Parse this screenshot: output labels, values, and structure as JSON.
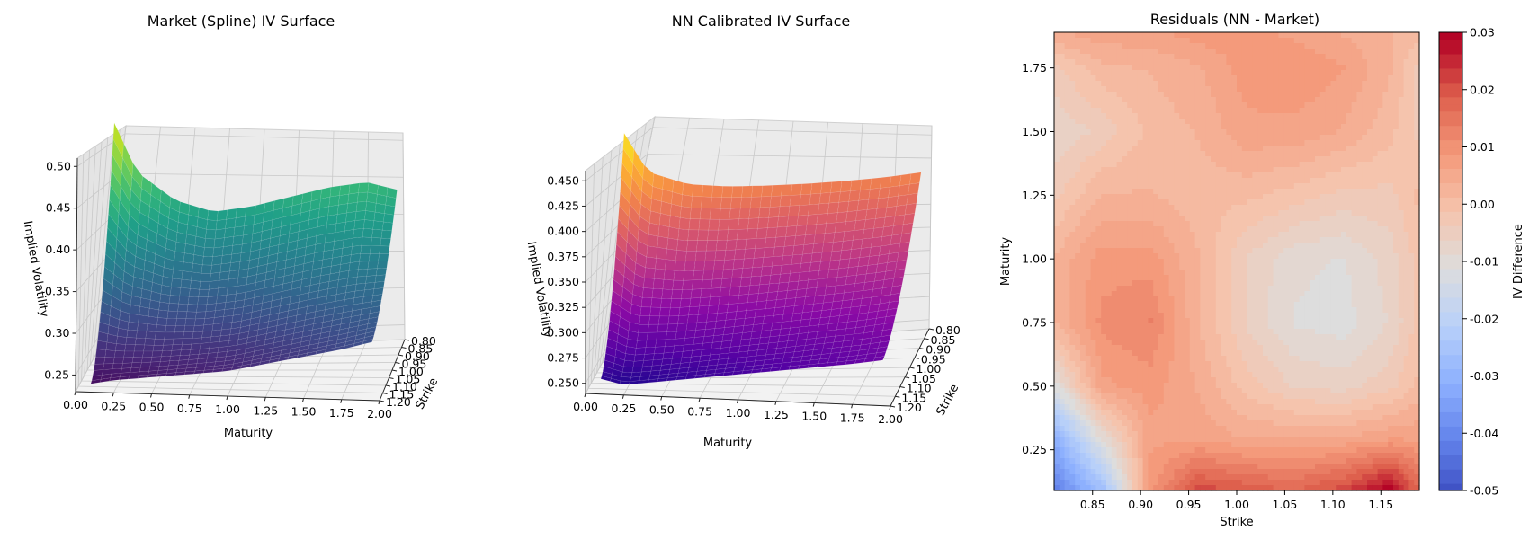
{
  "chart_data": [
    {
      "type": "surface",
      "title": "Market (Spline) IV Surface",
      "xlabel": "Maturity",
      "ylabel": "Strike",
      "zlabel": "Implied Volatility",
      "colormap": "viridis",
      "x_ticks": [
        "0.00",
        "0.25",
        "0.50",
        "0.75",
        "1.00",
        "1.25",
        "1.50",
        "1.75",
        "2.00"
      ],
      "y_ticks": [
        "0.80",
        "0.85",
        "0.90",
        "0.95",
        "1.00",
        "1.05",
        "1.10",
        "1.15",
        "1.20"
      ],
      "z_ticks": [
        "0.25",
        "0.30",
        "0.35",
        "0.40",
        "0.45",
        "0.50"
      ],
      "xlim": [
        0,
        2
      ],
      "ylim": [
        0.8,
        1.2
      ],
      "zlim": [
        0.23,
        0.51
      ],
      "maturity_front_edge": [
        0.05,
        0.1,
        0.25,
        0.5,
        0.75,
        1.0,
        1.25,
        1.5,
        1.75,
        1.95
      ],
      "iv_front_edge": [
        0.25,
        0.24,
        0.245,
        0.25,
        0.255,
        0.26,
        0.27,
        0.28,
        0.29,
        0.3
      ],
      "maturity_back_edge": [
        0.1,
        0.25,
        0.5,
        0.75,
        1.0,
        1.25,
        1.5,
        1.75,
        1.95
      ],
      "iv_back_edge": [
        0.5,
        0.44,
        0.405,
        0.39,
        0.395,
        0.405,
        0.415,
        0.42,
        0.41
      ]
    },
    {
      "type": "surface",
      "title": "NN Calibrated IV Surface",
      "xlabel": "Maturity",
      "ylabel": "Strike",
      "zlabel": "Implied Volatility",
      "colormap": "plasma",
      "x_ticks": [
        "0.00",
        "0.25",
        "0.50",
        "0.75",
        "1.00",
        "1.25",
        "1.50",
        "1.75",
        "2.00"
      ],
      "y_ticks": [
        "0.80",
        "0.85",
        "0.90",
        "0.95",
        "1.00",
        "1.05",
        "1.10",
        "1.15",
        "1.20"
      ],
      "z_ticks": [
        "0.250",
        "0.275",
        "0.300",
        "0.325",
        "0.350",
        "0.375",
        "0.400",
        "0.425",
        "0.450"
      ],
      "xlim": [
        0,
        2
      ],
      "ylim": [
        0.8,
        1.2
      ],
      "zlim": [
        0.24,
        0.46
      ],
      "maturity_front_edge": [
        0.05,
        0.1,
        0.25,
        0.5,
        0.75,
        1.0,
        1.25,
        1.5,
        1.75,
        1.95
      ],
      "iv_front_edge": [
        0.265,
        0.255,
        0.25,
        0.255,
        0.26,
        0.265,
        0.27,
        0.275,
        0.28,
        0.285
      ],
      "maturity_back_edge": [
        0.1,
        0.25,
        0.5,
        0.75,
        1.0,
        1.25,
        1.5,
        1.75,
        1.95
      ],
      "iv_back_edge": [
        0.455,
        0.415,
        0.4,
        0.395,
        0.393,
        0.392,
        0.392,
        0.393,
        0.395
      ]
    },
    {
      "type": "heatmap",
      "title": "Residuals (NN - Market)",
      "xlabel": "Strike",
      "ylabel": "Maturity",
      "colorbar_label": "IV Difference",
      "colormap": "coolwarm",
      "x_ticks": [
        "0.85",
        "0.90",
        "0.95",
        "1.00",
        "1.05",
        "1.10",
        "1.15"
      ],
      "y_ticks": [
        "0.25",
        "0.50",
        "0.75",
        "1.00",
        "1.25",
        "1.50",
        "1.75"
      ],
      "colorbar_ticks": [
        "-0.05",
        "-0.04",
        "-0.03",
        "-0.02",
        "-0.01",
        "0.00",
        "0.01",
        "0.02",
        "0.03"
      ],
      "xlim": [
        0.81,
        1.19
      ],
      "ylim": [
        0.09,
        1.89
      ],
      "clim": [
        -0.05,
        0.03
      ],
      "strike": [
        0.81,
        0.86,
        0.91,
        0.96,
        1.01,
        1.06,
        1.11,
        1.16,
        1.19
      ],
      "maturity": [
        0.1,
        0.3,
        0.5,
        0.75,
        1.0,
        1.25,
        1.5,
        1.75,
        1.89
      ],
      "values": [
        [
          -0.04,
          -0.025,
          0.01,
          0.022,
          0.02,
          0.018,
          0.022,
          0.03,
          0.018
        ],
        [
          -0.03,
          -0.008,
          0.008,
          0.008,
          0.006,
          0.006,
          0.006,
          0.008,
          0.008
        ],
        [
          -0.01,
          0.008,
          0.01,
          0.006,
          0.0,
          -0.004,
          -0.005,
          -0.002,
          0.002
        ],
        [
          0.004,
          0.012,
          0.014,
          0.004,
          -0.004,
          -0.009,
          -0.01,
          -0.006,
          0.0
        ],
        [
          0.004,
          0.01,
          0.01,
          0.004,
          -0.004,
          -0.008,
          -0.009,
          -0.005,
          0.0
        ],
        [
          -0.002,
          0.004,
          0.004,
          0.002,
          0.002,
          0.0,
          -0.002,
          -0.002,
          0.002
        ],
        [
          -0.006,
          -0.003,
          0.002,
          0.004,
          0.008,
          0.008,
          0.006,
          0.002,
          -0.002
        ],
        [
          -0.002,
          0.003,
          0.004,
          0.006,
          0.01,
          0.011,
          0.009,
          0.004,
          -0.002
        ],
        [
          0.006,
          0.008,
          0.008,
          0.01,
          0.01,
          0.008,
          0.006,
          0.004,
          0.002
        ]
      ]
    }
  ]
}
